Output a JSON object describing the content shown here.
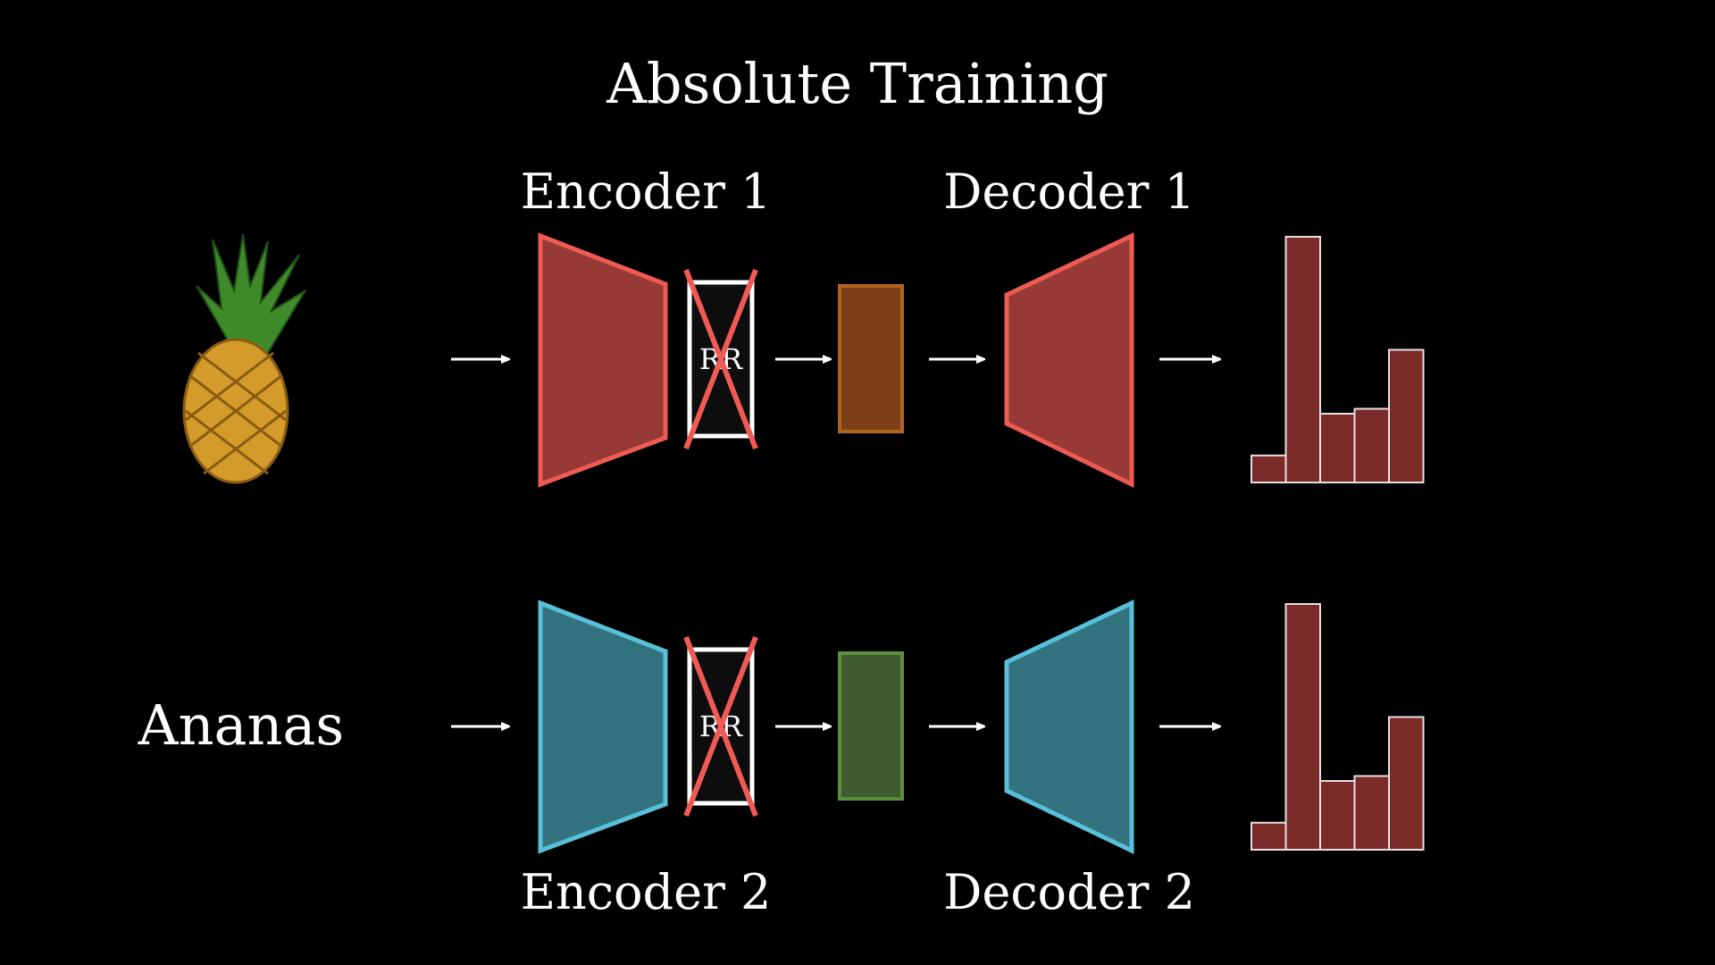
{
  "title": "Absolute Training",
  "rows": [
    {
      "encoder_label": "Encoder 1",
      "decoder_label": "Decoder 1",
      "input_kind": "image",
      "input_icon": "pineapple-icon",
      "input_text": "",
      "rr_text": "RR",
      "network_color": "#973a36",
      "network_stroke": "#ef5b54",
      "latent_color": "#7c3f18",
      "latent_stroke": "#b1641f",
      "histogram": {
        "values": [
          0.11,
          1.0,
          0.28,
          0.3,
          0.54
        ]
      }
    },
    {
      "encoder_label": "Encoder 2",
      "decoder_label": "Decoder 2",
      "input_kind": "text",
      "input_icon": "",
      "input_text": "Ananas",
      "rr_text": "RR",
      "network_color": "#33737f",
      "network_stroke": "#58c0d8",
      "latent_color": "#3f5c30",
      "latent_stroke": "#5a8f3f",
      "histogram": {
        "values": [
          0.11,
          1.0,
          0.28,
          0.3,
          0.54
        ]
      }
    }
  ],
  "colors": {
    "background": "#000000",
    "rr_box_stroke": "#ffffff",
    "cross": "#ef5b54",
    "bar_fill": "#7a2b29",
    "bar_stroke": "#e8e0e0",
    "arrow": "#ffffff"
  }
}
